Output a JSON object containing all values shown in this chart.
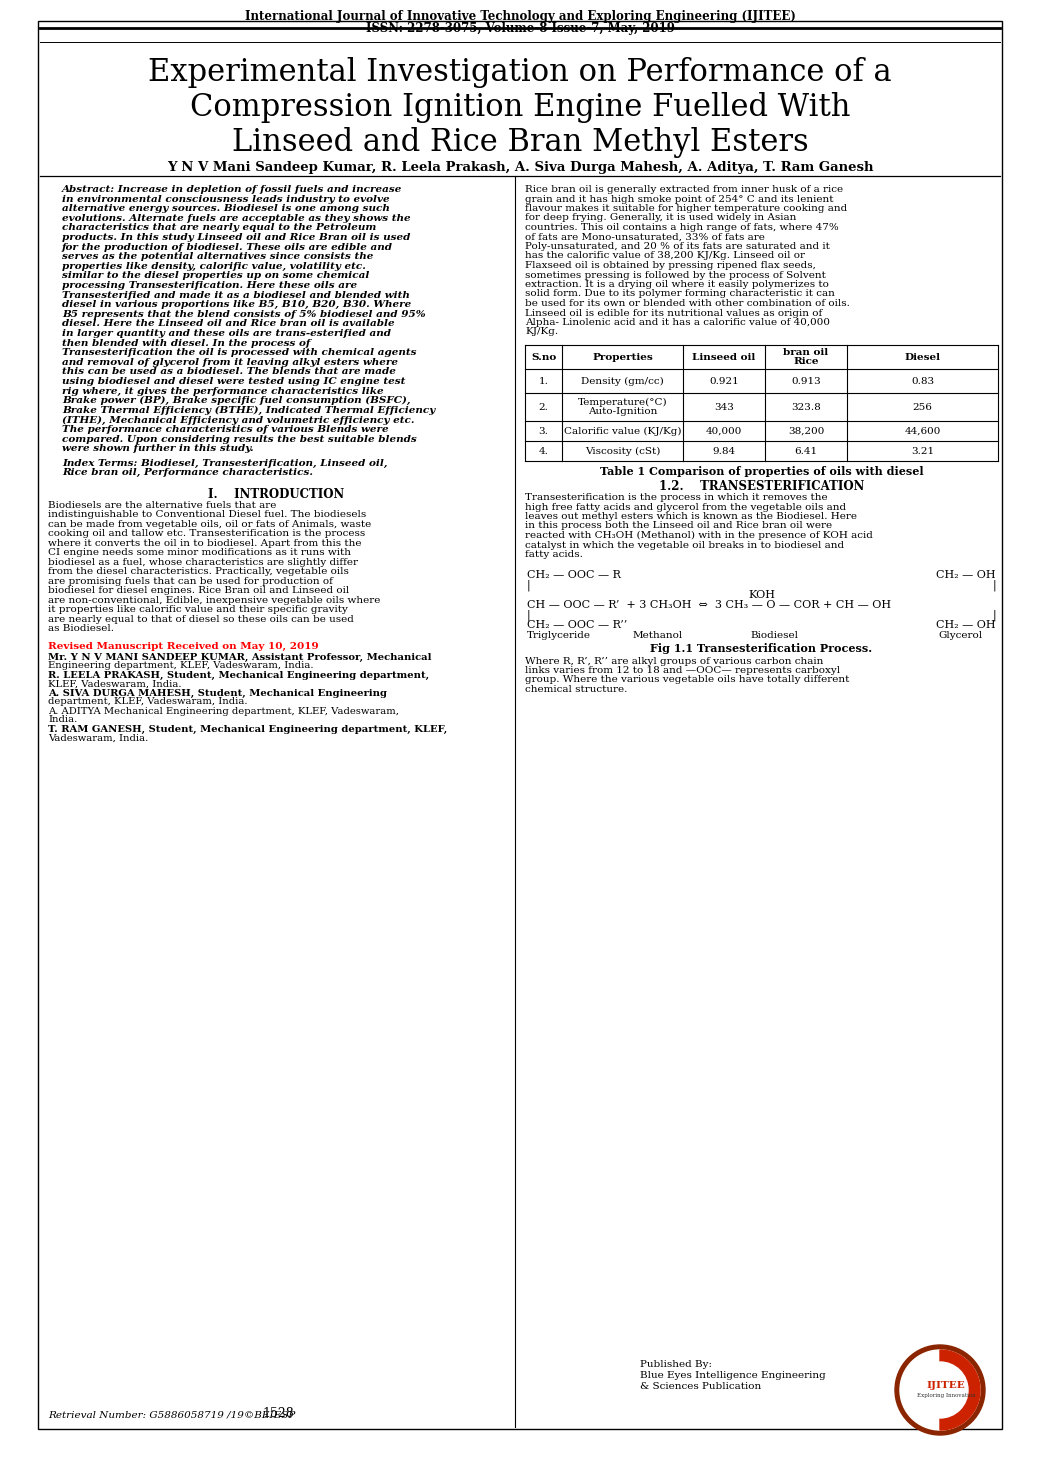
{
  "journal_line1": "International Journal of Innovative Technology and Exploring Engineering (IJITEE)",
  "journal_line2": "ISSN: 2278-3075, Volume-8 Issue-7, May, 2019",
  "title_line1": "Experimental Investigation on Performance of a",
  "title_line2": "Compression Ignition Engine Fuelled With",
  "title_line3": "Linseed and Rice Bran Methyl Esters",
  "authors": "Y N V Mani Sandeep Kumar, R. Leela Prakash, A. Siva Durga Mahesh, A. Aditya, T. Ram Ganesh",
  "abstract_label": "Abstract:",
  "abstract_text": "Increase in depletion of fossil fuels and increase in environmental consciousness leads industry to evolve alternative energy sources. Biodiesel is one among such evolutions. Alternate fuels are acceptable as they shows the characteristics that are nearly equal to the Petroleum products. In this study Linseed oil and Rice Bran oil is used for the production of biodiesel. These oils are edible and serves as the potential alternatives since consists the properties like density, calorific value, volatility etc. similar to the diesel properties up on some chemical processing Transesterification. Here these oils are Transesterified and made it as a biodiesel and blended with diesel in various proportions like B5, B10, B20, B30. Where B5 represents that the blend consists of 5% biodiesel and 95% diesel. Here the Linseed oil and Rice bran oil is available in larger quantity and these oils are trans-esterified and then blended with diesel. In the process of Transesterification the oil is processed with chemical agents and removal of glycerol from it leaving alkyl esters where this can be used as a biodiesel. The blends that are made using biodiesel and diesel were tested using IC engine test rig where, it gives the performance characteristics like Brake power (BP), Brake specific fuel consumption (BSFC), Brake Thermal Efficiency (BTHE), Indicated Thermal Efficiency (ITHE), Mechanical Efficiency and volumetric efficiency etc. The performance characteristics of various Blends were compared. Upon considering results the best suitable blends were shown further in this study.",
  "index_terms": "Index Terms: Biodiesel, Transesterification, Linseed oil, Rice bran oil, Performance characteristics.",
  "intro_heading": "I.    INTRODUCTION",
  "intro_text": "Biodiesels are the alternative fuels that are indistinguishable to Conventional Diesel fuel. The biodiesels can be made from vegetable oils, oil or fats of Animals, waste cooking oil and tallow etc. Transesterification is the process where it converts the oil in to biodiesel. Apart from this the CI engine needs some minor modifications as it runs with biodiesel as a fuel, whose characteristics are slightly differ from the diesel characteristics. Practically, vegetable oils are promising fuels that can be used for production of biodiesel for diesel engines. Rice Bran oil and Linseed oil are non-conventional, Edible, inexpensive vegetable oils where it properties like calorific value and their specific gravity are nearly equal to that of diesel so these oils can be used as Biodiesel.",
  "revised_label": "Revised Manuscript Received on May 10, 2019",
  "author1_bold": "Mr. Y N V MANI SANDEEP KUMAR,",
  "author1_rest": " Assistant Professor, Mechanical Engineering department, KLEF, Vadeswaram, India.",
  "author2_bold": "R. LEELA PRAKASH,",
  "author2_rest": " Student, Mechanical Engineering department, KLEF, Vadeswaram, India.",
  "author3_bold": "A. SIVA DURGA MAHESH,",
  "author3_rest": " Student, Mechanical Engineering department, KLEF, Vadeswaram, India.",
  "author4": "A. ADITYA Mechanical Engineering department, KLEF, Vadeswaram, India.",
  "author5_bold": "T. RAM GANESH,",
  "author5_rest": " Student, Mechanical Engineering department, KLEF, Vadeswaram, India.",
  "retrieval": "Retrieval Number: G5886058719 /19©BEIESP",
  "page_number": "1528",
  "published_by_line1": "Published By:",
  "published_by_line2": "Blue Eyes Intelligence Engineering",
  "published_by_line3": "& Sciences Publication",
  "right_col_para1": "Rice bran oil is generally extracted from inner husk of a rice grain and it has high smoke point of 254° C and its lenient flavour makes it suitable for higher temperature cooking and for deep frying. Generally, it is used widely in Asian countries. This oil contains a high range of fats, where 47% of fats are Mono-unsaturated, 33% of fats are Poly-unsaturated, and 20 % of its fats are saturated and it has the calorific value of 38,200 KJ/Kg. Linseed oil or Flaxseed oil is obtained by pressing ripened flax seeds, sometimes pressing is followed by the process of Solvent extraction. It is a drying oil where it easily polymerizes to solid form. Due to its polymer forming characteristic it can be used for its own or blended with other combination of oils. Linseed oil is edible for its nutritional values as origin of Alpha- Linolenic acid and it has a calorific value of 40,000 KJ/Kg.",
  "table_headers": [
    "S.no",
    "Properties",
    "Linseed oil",
    "Rice\nbran oil",
    "Diesel"
  ],
  "table_rows": [
    [
      "1.",
      "Density (gm/cc)",
      "0.921",
      "0.913",
      "0.83"
    ],
    [
      "2.",
      "Auto-Ignition\nTemperature(°C)",
      "343",
      "323.8",
      "256"
    ],
    [
      "3.",
      "Calorific value (KJ/Kg)",
      "40,000",
      "38,200",
      "44,600"
    ],
    [
      "4.",
      "Viscosity (cSt)",
      "9.84",
      "6.41",
      "3.21"
    ]
  ],
  "table_caption": "Table 1 Comparison of properties of oils with diesel",
  "section_12": "1.2.    TRANSESTERIFICATION",
  "trans_text": "Transesterification is the process in which it removes the high free fatty acids and glycerol from the vegetable oils and leaves out methyl esters which is known as the Biodiesel. Here in this process both the Linseed oil and Rice bran oil were reacted with CH₃OH (Methanol) with in the presence of KOH acid catalyst in which the vegetable oil breaks in to biodiesel and fatty acids.",
  "fig_caption": "Fig 1.1 Transesterification Process.",
  "section_where": "Where R, R’, R’’ are alkyl groups of various carbon chain links varies from 12 to 18 and —OOC— represents carboxyl group. Where the various vegetable oils have totally different chemical structure.",
  "bg_color": "#ffffff",
  "text_color": "#000000"
}
